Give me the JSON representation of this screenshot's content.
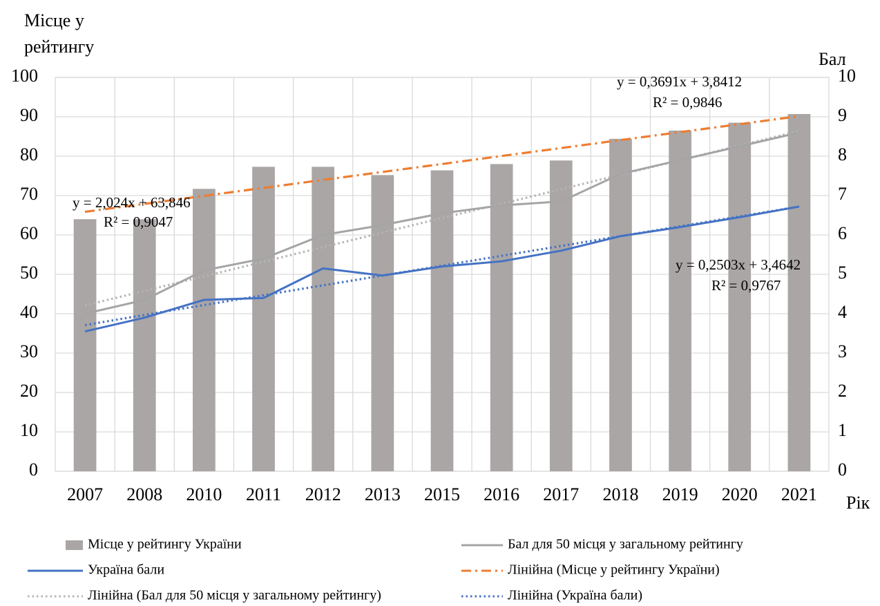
{
  "chart_data": {
    "type": "bar-line",
    "y_label": [
      "Місце у",
      "рейтингу"
    ],
    "y2_label": "Бал",
    "x_label": "Рік",
    "categories": [
      "2007",
      "2008",
      "2010",
      "2011",
      "2012",
      "2013",
      "2015",
      "2016",
      "2017",
      "2018",
      "2019",
      "2020",
      "2021"
    ],
    "series": [
      {
        "name": "Місце у рейтингу України",
        "color": "#aaa6a5",
        "kind": "bar",
        "axis": "y",
        "values": [
          64,
          64,
          71.7,
          77.3,
          77.3,
          75.2,
          76.4,
          78,
          78.9,
          84.4,
          86.5,
          88.5,
          90.7
        ]
      },
      {
        "name": "Бал для 50 місця у загальному рейтингу",
        "color": "#a5a5a5",
        "kind": "line",
        "style": "solid",
        "axis": "y2",
        "values": [
          4.0,
          4.35,
          5.1,
          5.4,
          6.0,
          6.25,
          6.55,
          6.75,
          6.85,
          7.55,
          7.9,
          8.25,
          8.6
        ]
      },
      {
        "name": "Україна бали",
        "color": "#4472c4",
        "kind": "line",
        "style": "solid",
        "axis": "y2",
        "values": [
          3.55,
          3.9,
          4.35,
          4.4,
          5.15,
          4.97,
          5.2,
          5.33,
          5.6,
          5.97,
          6.2,
          6.45,
          6.72
        ]
      },
      {
        "name": "Лінійна (Місце у рейтингу України)",
        "color": "#ed7d31",
        "kind": "line",
        "style": "dashdot",
        "axis": "y",
        "values": [
          65.87,
          67.89,
          69.92,
          71.94,
          73.97,
          75.99,
          78.01,
          80.04,
          82.06,
          84.09,
          86.11,
          88.13,
          90.16
        ]
      },
      {
        "name": "Лінійна (Бал для 50 місця у загальному рейтингу)",
        "color": "#b4b4b4",
        "kind": "line",
        "style": "dotted",
        "axis": "y2",
        "values": [
          4.21,
          4.58,
          4.95,
          5.32,
          5.69,
          6.06,
          6.43,
          6.79,
          7.16,
          7.53,
          7.9,
          8.27,
          8.64
        ]
      },
      {
        "name": "Лінійна (Україна бали)",
        "color": "#4472c4",
        "kind": "line",
        "style": "dotted",
        "axis": "y2",
        "values": [
          3.71,
          3.97,
          4.22,
          4.47,
          4.72,
          4.97,
          5.22,
          5.47,
          5.72,
          5.97,
          6.22,
          6.47,
          6.72
        ]
      }
    ],
    "annotations": [
      [
        "y = 2,024x + 63,846",
        "R² = 0,9047"
      ],
      [
        "y = 0,3691x + 3,8412",
        "R² = 0,9846"
      ],
      [
        "y = 0,2503x + 3,4642",
        "R² = 0,9767"
      ]
    ],
    "ylim": [
      0,
      100
    ],
    "yticks": [
      0,
      10,
      20,
      30,
      40,
      50,
      60,
      70,
      80,
      90,
      100
    ],
    "y2lim": [
      0,
      10
    ],
    "y2ticks": [
      0,
      1,
      2,
      3,
      4,
      5,
      6,
      7,
      8,
      9,
      10
    ],
    "grid": true,
    "legend": "bottom"
  }
}
